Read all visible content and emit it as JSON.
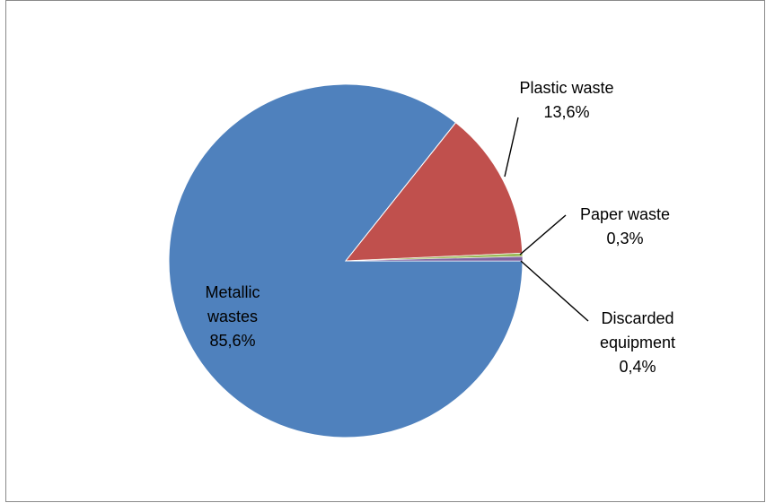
{
  "chart_data": {
    "type": "pie",
    "title": "",
    "slices": [
      {
        "label_lines": [
          "Metallic",
          "wastes",
          "85,6%"
        ],
        "value": 85.6,
        "color": "#4F81BD"
      },
      {
        "label_lines": [
          "Plastic waste",
          "13,6%"
        ],
        "value": 13.6,
        "color": "#C0504D"
      },
      {
        "label_lines": [
          "Paper waste",
          "0,3%"
        ],
        "value": 0.3,
        "color": "#9BBB59"
      },
      {
        "label_lines": [
          "Discarded",
          "equipment",
          "0,4%"
        ],
        "value": 0.4,
        "color": "#8064A2"
      }
    ],
    "legend": "none"
  }
}
